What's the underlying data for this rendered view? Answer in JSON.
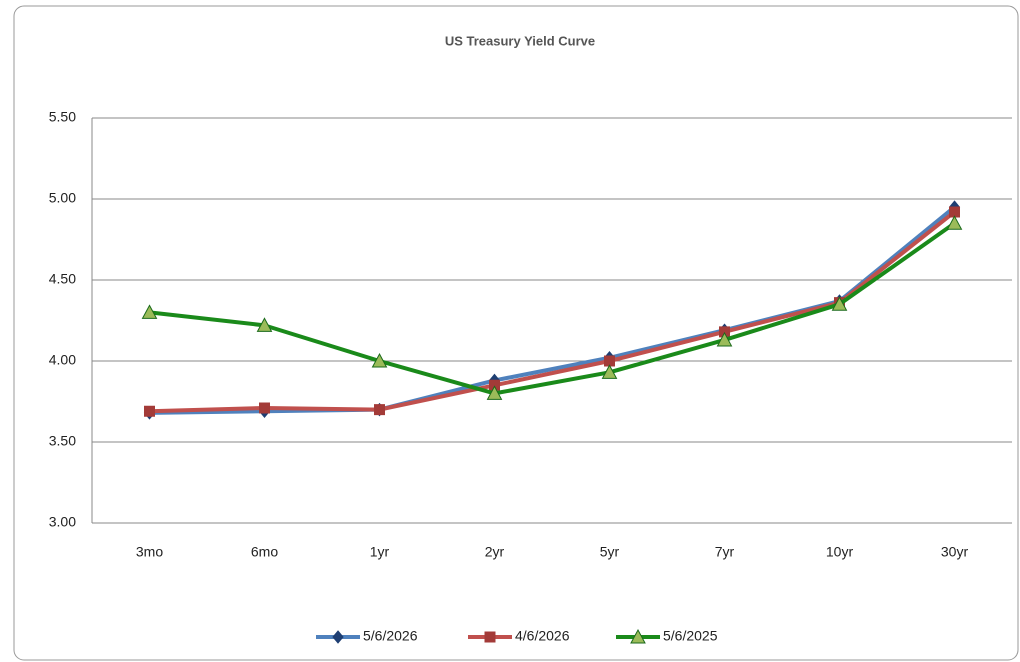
{
  "chart_data": {
    "type": "line",
    "title": "US Treasury Yield Curve",
    "categories": [
      "3mo",
      "6mo",
      "1yr",
      "2yr",
      "5yr",
      "7yr",
      "10yr",
      "30yr"
    ],
    "series": [
      {
        "name": "5/6/2026",
        "color": "#4f81bd",
        "marker": "diamond",
        "marker_color": "#1f3f73",
        "values": [
          3.68,
          3.69,
          3.7,
          3.88,
          4.02,
          4.19,
          4.37,
          4.95
        ]
      },
      {
        "name": "4/6/2026",
        "color": "#c0504d",
        "marker": "square",
        "marker_color": "#a33b38",
        "values": [
          3.69,
          3.71,
          3.7,
          3.85,
          4.0,
          4.18,
          4.36,
          4.92
        ]
      },
      {
        "name": "5/6/2025",
        "color": "#1a8a1a",
        "marker": "triangle",
        "marker_color": "#9bbb59",
        "values": [
          4.3,
          4.22,
          4.0,
          3.8,
          3.93,
          4.13,
          4.35,
          4.85
        ]
      }
    ],
    "ylim": [
      3.0,
      5.5
    ],
    "yticks": [
      {
        "value": 3.0,
        "label": "3.00"
      },
      {
        "value": 3.5,
        "label": "3.50"
      },
      {
        "value": 4.0,
        "label": "4.00"
      },
      {
        "value": 4.5,
        "label": "4.50"
      },
      {
        "value": 5.0,
        "label": "5.00"
      },
      {
        "value": 5.5,
        "label": "5.50"
      }
    ],
    "grid": true,
    "legend": "bottom"
  }
}
